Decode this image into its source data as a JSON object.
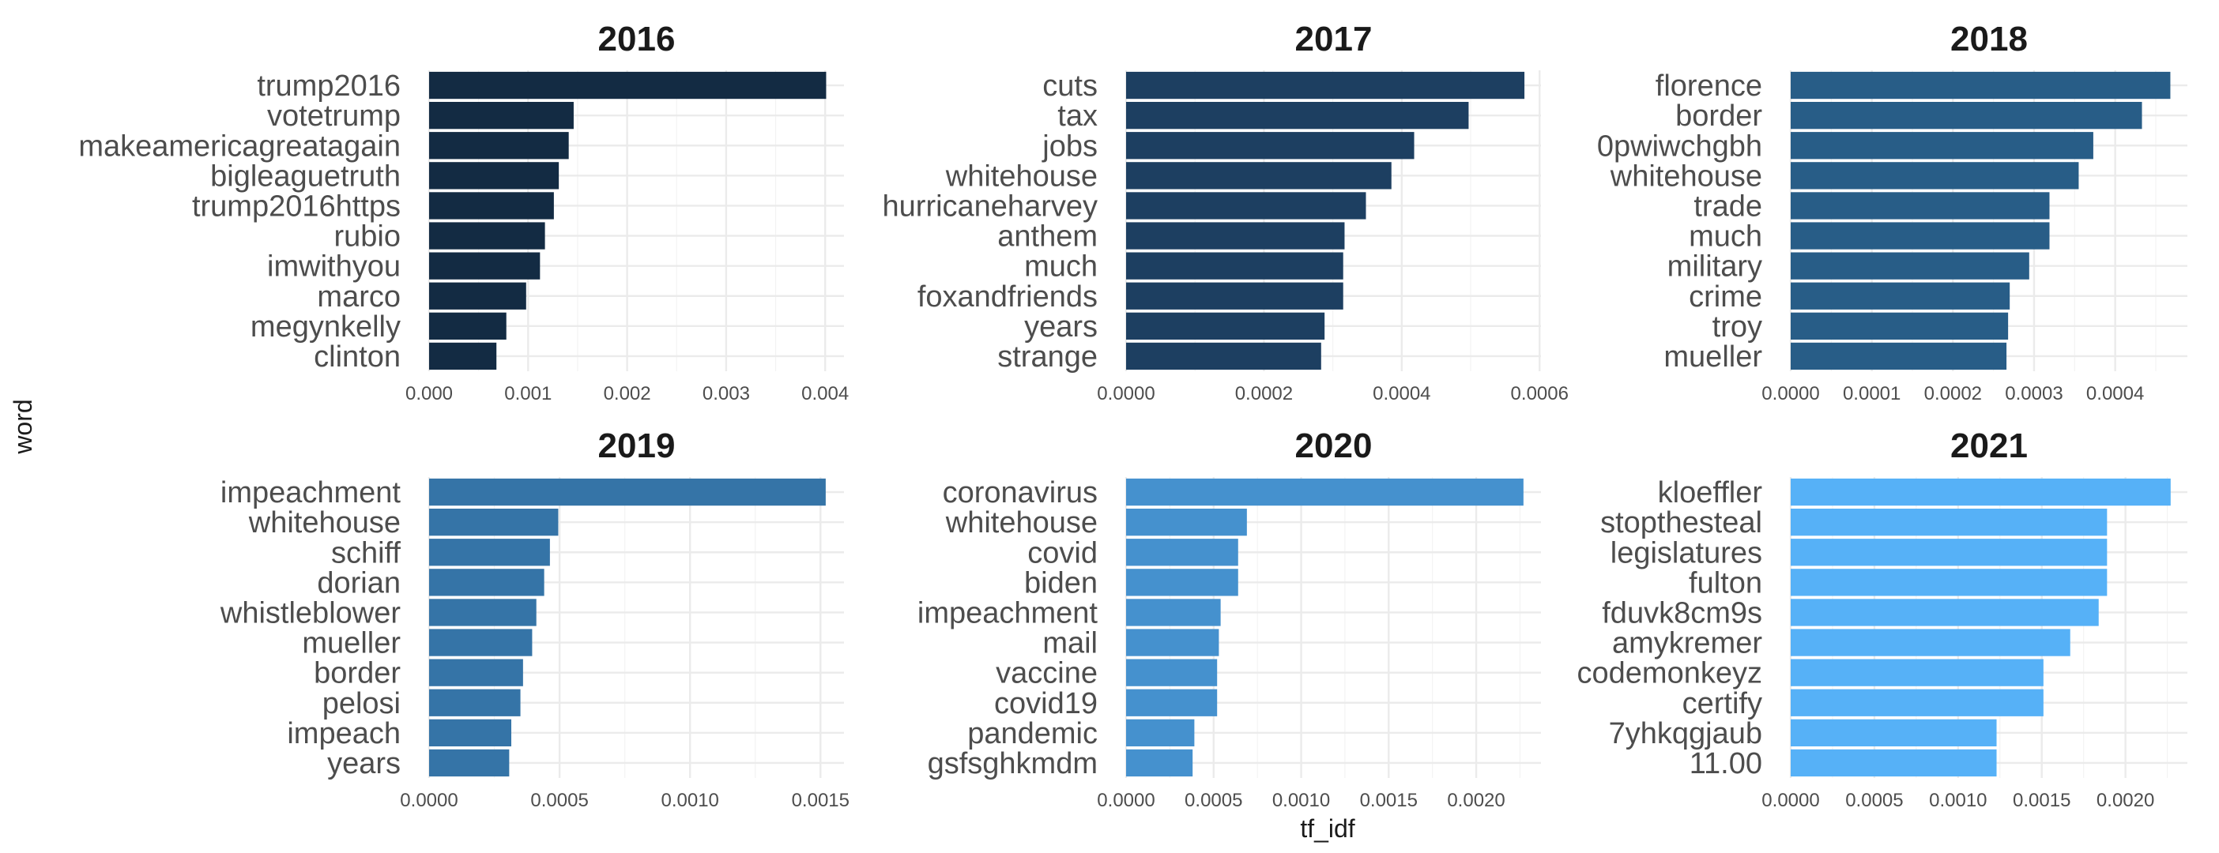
{
  "figure": {
    "xlabel": "tf_idf",
    "ylabel": "word"
  },
  "chart_data": [
    {
      "type": "bar",
      "title": "2016",
      "color": "#132B43",
      "categories": [
        "trump2016",
        "votetrump",
        "makeamericagreatagain",
        "bigleaguetruth",
        "trump2016https",
        "rubio",
        "imwithyou",
        "marco",
        "megynkelly",
        "clinton"
      ],
      "values": [
        0.00401,
        0.00146,
        0.00141,
        0.00131,
        0.00126,
        0.00117,
        0.00112,
        0.00098,
        0.00078,
        0.00068
      ],
      "xlim": [
        0,
        0.00419
      ],
      "xticks": [
        0,
        0.001,
        0.002,
        0.003,
        0.004
      ],
      "xtick_labels": [
        "0.000",
        "0.001",
        "0.002",
        "0.003",
        "0.004"
      ],
      "minor_ticks": [
        0.0005,
        0.0015,
        0.0025,
        0.0035
      ],
      "grid": true
    },
    {
      "type": "bar",
      "title": "2017",
      "color": "#1D3F61",
      "categories": [
        "cuts",
        "tax",
        "jobs",
        "whitehouse",
        "hurricaneharvey",
        "anthem",
        "much",
        "foxandfriends",
        "years",
        "strange"
      ],
      "values": [
        0.000578,
        0.000497,
        0.000418,
        0.000385,
        0.000348,
        0.000317,
        0.000315,
        0.000315,
        0.000288,
        0.000283
      ],
      "xlim": [
        0,
        0.000602
      ],
      "xticks": [
        0,
        0.0002,
        0.0004,
        0.0006
      ],
      "xtick_labels": [
        "0.0000",
        "0.0002",
        "0.0004",
        "0.0006"
      ],
      "minor_ticks": [
        0.0001,
        0.0003,
        0.0005
      ],
      "grid": true
    },
    {
      "type": "bar",
      "title": "2018",
      "color": "#285D87",
      "categories": [
        "florence",
        "border",
        "0pwiwchgbh",
        "whitehouse",
        "trade",
        "much",
        "military",
        "crime",
        "troy",
        "mueller"
      ],
      "values": [
        0.000468,
        0.000433,
        0.000373,
        0.000355,
        0.000319,
        0.000319,
        0.000294,
        0.00027,
        0.000268,
        0.000266
      ],
      "xlim": [
        0,
        0.000489
      ],
      "xticks": [
        0,
        0.0001,
        0.0002,
        0.0003,
        0.0004
      ],
      "xtick_labels": [
        "0.0000",
        "0.0001",
        "0.0002",
        "0.0003",
        "0.0004"
      ],
      "minor_ticks": [
        5e-05,
        0.00015,
        0.00025,
        0.00035,
        0.00045
      ],
      "grid": true
    },
    {
      "type": "bar",
      "title": "2019",
      "color": "#3574A7",
      "categories": [
        "impeachment",
        "whitehouse",
        "schiff",
        "dorian",
        "whistleblower",
        "mueller",
        "border",
        "pelosi",
        "impeach",
        "years"
      ],
      "values": [
        0.00152,
        0.000495,
        0.000463,
        0.000441,
        0.000411,
        0.000395,
        0.00036,
        0.00035,
        0.000315,
        0.000307
      ],
      "xlim": [
        0,
        0.00159
      ],
      "xticks": [
        0,
        0.0005,
        0.001,
        0.0015
      ],
      "xtick_labels": [
        "0.0000",
        "0.0005",
        "0.0010",
        "0.0015"
      ],
      "minor_ticks": [
        0.00025,
        0.00075,
        0.00125
      ],
      "grid": true
    },
    {
      "type": "bar",
      "title": "2020",
      "color": "#4591CE",
      "categories": [
        "coronavirus",
        "whitehouse",
        "covid",
        "biden",
        "impeachment",
        "mail",
        "vaccine",
        "covid19",
        "pandemic",
        "gsfsghkmdm"
      ],
      "values": [
        0.00227,
        0.00069,
        0.00064,
        0.00064,
        0.00054,
        0.00053,
        0.00052,
        0.00052,
        0.00039,
        0.00038
      ],
      "xlim": [
        0,
        0.00237
      ],
      "xticks": [
        0,
        0.0005,
        0.001,
        0.0015,
        0.002
      ],
      "xtick_labels": [
        "0.0000",
        "0.0005",
        "0.0010",
        "0.0015",
        "0.0020"
      ],
      "minor_ticks": [
        0.00025,
        0.00075,
        0.00125,
        0.00175,
        0.00225
      ],
      "grid": true
    },
    {
      "type": "bar",
      "title": "2021",
      "color": "#56B1F7",
      "categories": [
        "kloeffler",
        "stopthesteal",
        "legislatures",
        "fulton",
        "fduvk8cm9s",
        "amykremer",
        "codemonkeyz",
        "certify",
        "7yhkqgjaub",
        "11.00"
      ],
      "values": [
        0.00227,
        0.00189,
        0.00189,
        0.00189,
        0.00184,
        0.00167,
        0.00151,
        0.00151,
        0.00123,
        0.00123
      ],
      "xlim": [
        0,
        0.00237
      ],
      "xticks": [
        0,
        0.0005,
        0.001,
        0.0015,
        0.002
      ],
      "xtick_labels": [
        "0.0000",
        "0.0005",
        "0.0010",
        "0.0015",
        "0.0020"
      ],
      "minor_ticks": [
        0.00025,
        0.00075,
        0.00125,
        0.00175,
        0.00225
      ],
      "grid": true
    }
  ]
}
